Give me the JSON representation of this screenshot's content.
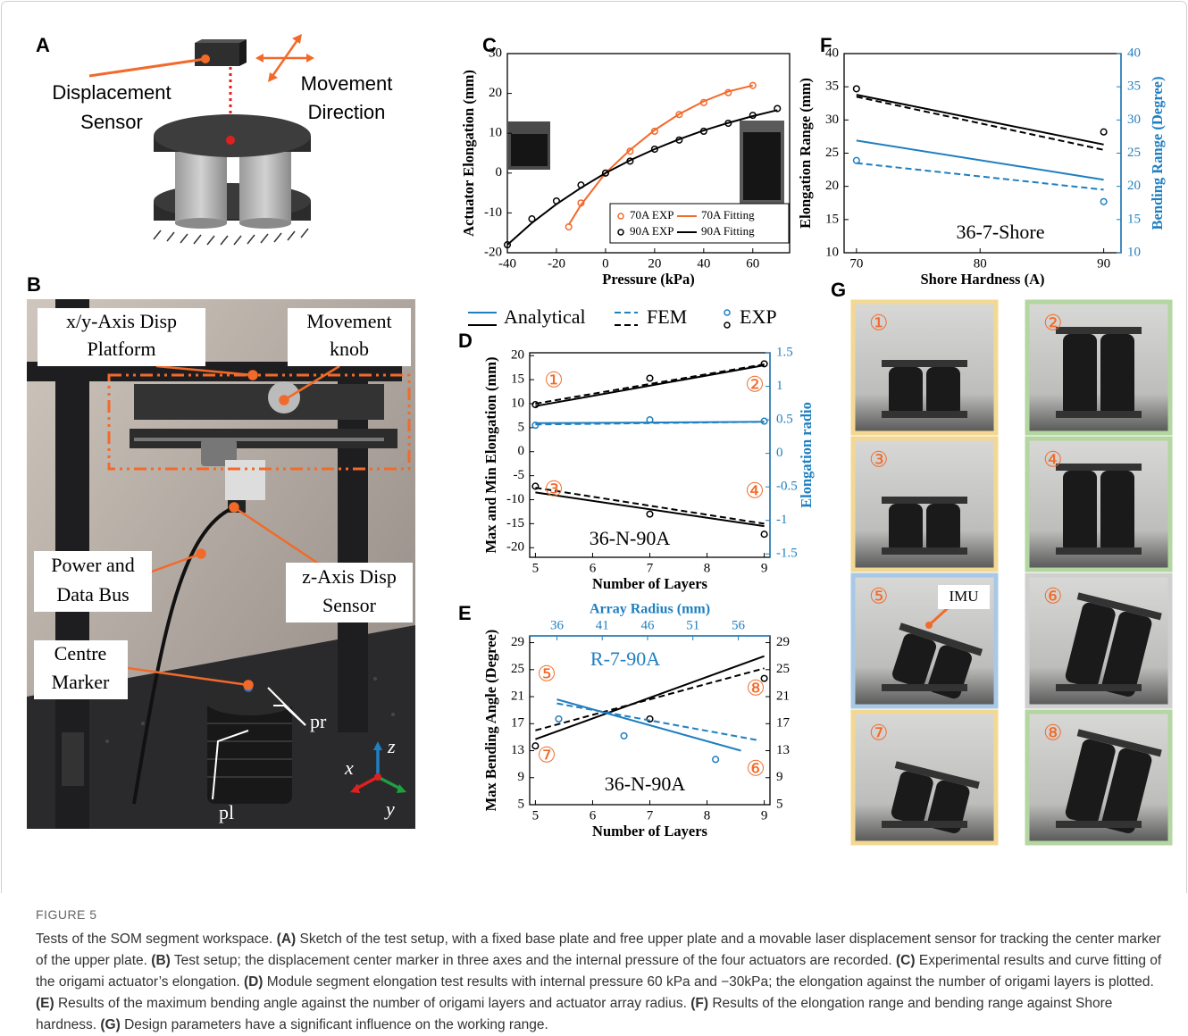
{
  "figure": {
    "panel_labels": [
      "A",
      "B",
      "C",
      "D",
      "E",
      "F",
      "G"
    ],
    "panel_a": {
      "sensor_label": [
        "Displacement",
        "Sensor"
      ],
      "movement_label": [
        "Movement",
        "Direction"
      ]
    },
    "panel_b": {
      "labels": [
        [
          "x/y-Axis Disp",
          "Platform"
        ],
        [
          "Movement",
          "knob"
        ],
        [
          "Power and",
          "Data Bus"
        ],
        [
          "z-Axis Disp",
          "Sensor"
        ],
        [
          "Centre",
          "Marker"
        ]
      ],
      "part_labels": [
        "pl",
        "pr"
      ],
      "axes": [
        "x",
        "y",
        "z"
      ]
    },
    "legend": [
      "Analytical",
      "FEM",
      "EXP"
    ],
    "panel_g": {
      "tiles": [
        "①",
        "②",
        "③",
        "④",
        "⑤",
        "⑥",
        "⑦",
        "⑧"
      ],
      "imu": "IMU"
    },
    "caption": {
      "figure": "FIGURE 5",
      "lead": "Tests of the SOM segment workspace.",
      "items": [
        {
          "label": "(A)",
          "text": "Sketch of the test setup, with a fixed base plate and free upper plate and a movable laser displacement sensor for tracking the center marker of the upper plate."
        },
        {
          "label": "(B)",
          "text": "Test setup; the displacement center marker in three axes and the internal pressure of the four actuators are recorded."
        },
        {
          "label": "(C)",
          "text": "Experimental results and curve fitting of the origami actuator’s elongation."
        },
        {
          "label": "(D)",
          "text": "Module segment elongation test results with internal pressure 60 kPa and −30kPa; the elongation against the number of origami layers is plotted."
        },
        {
          "label": "(E)",
          "text": "Results of the maximum bending angle against the number of origami layers and actuator array radius."
        },
        {
          "label": "(F)",
          "text": "Results of the elongation range and bending range against Shore hardness."
        },
        {
          "label": "(G)",
          "text": "Design parameters have a significant influence on the working range."
        }
      ]
    }
  },
  "chart_data": [
    {
      "type": "line",
      "xlabel": "Pressure (kPa)",
      "ylabel": "Actuator Elongation (mm)",
      "xlim": [
        -40,
        75
      ],
      "xticks": [
        -40,
        -20,
        0,
        20,
        40,
        60
      ],
      "ylim": [
        -20,
        30
      ],
      "yticks": [
        -20,
        -10,
        0,
        10,
        20,
        30
      ],
      "series": [
        {
          "name": "70A EXP",
          "color": "#f26a2a",
          "style": "markers",
          "x": [
            -15,
            -10,
            0,
            10,
            20,
            30,
            40,
            50,
            60
          ],
          "values": [
            -13.5,
            -7.5,
            0,
            5.5,
            10.5,
            14.7,
            17.7,
            20.2,
            22
          ]
        },
        {
          "name": "70A Fitting",
          "color": "#f26a2a",
          "style": "solid",
          "x": [
            -15,
            -10,
            0,
            10,
            20,
            30,
            40,
            50,
            60
          ],
          "values": [
            -13,
            -8,
            0,
            5.8,
            10.8,
            14.8,
            18,
            20.5,
            22
          ]
        },
        {
          "name": "90A EXP",
          "color": "#000000",
          "style": "markers",
          "x": [
            -40,
            -30,
            -20,
            -10,
            0,
            10,
            20,
            30,
            40,
            50,
            60,
            70
          ],
          "values": [
            -18,
            -11.5,
            -7,
            -3,
            0,
            3,
            6,
            8.3,
            10.5,
            12.5,
            14.5,
            16.2
          ]
        },
        {
          "name": "90A Fitting",
          "color": "#000000",
          "style": "solid",
          "x": [
            -40,
            -30,
            -20,
            -10,
            0,
            10,
            20,
            30,
            40,
            50,
            60,
            70
          ],
          "values": [
            -18,
            -12.5,
            -7.8,
            -3.7,
            0,
            3.2,
            6,
            8.5,
            10.7,
            12.6,
            14.3,
            15.8
          ]
        }
      ]
    },
    {
      "type": "line",
      "xlabel": "Number of Layers",
      "ylabel": "Max and Min Elongation (mm)",
      "y2label": "Elongation radio",
      "y2_color": "#1f7fc0",
      "xlim": [
        4.9,
        9.1
      ],
      "xticks": [
        5,
        6,
        7,
        8,
        9
      ],
      "ylim": [
        -22,
        20.6
      ],
      "yticks": [
        -20,
        -15,
        -10,
        -5,
        0,
        5,
        10,
        15,
        20
      ],
      "y2lim": [
        -1.55,
        1.5
      ],
      "y2ticks": [
        -1.5,
        -1,
        -0.5,
        0,
        0.5,
        1,
        1.5
      ],
      "annotations": [
        "①",
        "②",
        "③",
        "④",
        "36-N-90A"
      ],
      "series": [
        {
          "color": "#000000",
          "style": "solid",
          "x": [
            5,
            9
          ],
          "values": [
            9.5,
            18
          ]
        },
        {
          "color": "#000000",
          "style": "dashed",
          "x": [
            5,
            9
          ],
          "values": [
            10,
            18.2
          ]
        },
        {
          "color": "#000000",
          "style": "markers",
          "x": [
            5,
            7,
            9
          ],
          "values": [
            9.8,
            15.3,
            18.3
          ]
        },
        {
          "color": "#000000",
          "style": "solid",
          "x": [
            5,
            9
          ],
          "values": [
            -8.5,
            -15.5
          ]
        },
        {
          "color": "#000000",
          "style": "dashed",
          "x": [
            5,
            9
          ],
          "values": [
            -7.5,
            -15
          ]
        },
        {
          "color": "#000000",
          "style": "markers",
          "x": [
            5,
            7,
            9
          ],
          "values": [
            -7.2,
            -13,
            -17.2
          ]
        },
        {
          "color": "#1f7fc0",
          "style": "solid",
          "axis": "y2",
          "x": [
            5,
            9
          ],
          "values": [
            0.45,
            0.47
          ]
        },
        {
          "color": "#1f7fc0",
          "style": "dashed",
          "axis": "y2",
          "x": [
            5,
            9
          ],
          "values": [
            0.43,
            0.47
          ]
        },
        {
          "color": "#1f7fc0",
          "style": "markers",
          "axis": "y2",
          "x": [
            5,
            7,
            9
          ],
          "values": [
            0.42,
            0.5,
            0.48
          ]
        }
      ]
    },
    {
      "type": "line",
      "xlabel": "Number of Layers",
      "ylabel": "Max Bending Angle (Degree)",
      "x2label": "Array Radius (mm)",
      "x2_color": "#1f7fc0",
      "xlim": [
        4.9,
        9.1
      ],
      "xticks": [
        5,
        6,
        7,
        8,
        9
      ],
      "x2lim": [
        33,
        59.5
      ],
      "x2ticks": [
        36,
        41,
        46,
        51,
        56
      ],
      "ylim": [
        5,
        30
      ],
      "yticks": [
        5,
        9,
        13,
        17,
        21,
        25,
        29
      ],
      "y2lim": [
        5,
        30
      ],
      "y2ticks": [
        5,
        9,
        13,
        17,
        21,
        25,
        29
      ],
      "annotations": [
        "R-7-90A",
        "⑤",
        "⑦",
        "⑧",
        "⑥",
        "36-N-90A"
      ],
      "series": [
        {
          "color": "#000000",
          "style": "solid",
          "x": [
            5,
            9
          ],
          "values": [
            14.7,
            27
          ]
        },
        {
          "color": "#000000",
          "style": "dashed",
          "x": [
            5,
            9
          ],
          "values": [
            16,
            25.2
          ]
        },
        {
          "color": "#000000",
          "style": "markers",
          "x": [
            5,
            7,
            9
          ],
          "values": [
            13.7,
            17.7,
            23.7
          ]
        },
        {
          "color": "#1f7fc0",
          "style": "solid",
          "xaxis": "x2",
          "x": [
            36,
            56.3
          ],
          "values": [
            20.6,
            13
          ]
        },
        {
          "color": "#1f7fc0",
          "style": "dashed",
          "xaxis": "x2",
          "x": [
            36,
            58.4
          ],
          "values": [
            20,
            14.5
          ]
        },
        {
          "color": "#1f7fc0",
          "style": "markers",
          "xaxis": "x2",
          "x": [
            36.2,
            43.4,
            53.5
          ],
          "values": [
            17.7,
            15.2,
            11.7
          ]
        }
      ]
    },
    {
      "type": "line",
      "xlabel": "Shore Hardness (A)",
      "ylabel": "Elongation Range (mm)",
      "y2label": "Bending Range (Degree)",
      "y2_color": "#1f7fc0",
      "xlim": [
        69,
        91.4
      ],
      "xticks": [
        70,
        80,
        90
      ],
      "ylim": [
        10,
        40
      ],
      "yticks": [
        10,
        15,
        20,
        25,
        30,
        35,
        40
      ],
      "y2lim": [
        10,
        40
      ],
      "y2ticks": [
        10,
        15,
        20,
        25,
        30,
        35,
        40
      ],
      "annotations": [
        "36-7-Shore"
      ],
      "series": [
        {
          "color": "#000000",
          "style": "solid",
          "x": [
            70,
            90
          ],
          "values": [
            33.8,
            26.3
          ]
        },
        {
          "color": "#000000",
          "style": "dashed",
          "x": [
            70,
            90
          ],
          "values": [
            33.5,
            25.5
          ]
        },
        {
          "color": "#000000",
          "style": "markers",
          "x": [
            70,
            90
          ],
          "values": [
            34.7,
            28.2
          ]
        },
        {
          "color": "#1f7fc0",
          "style": "solid",
          "axis": "y2",
          "x": [
            70,
            90
          ],
          "values": [
            26.9,
            21
          ]
        },
        {
          "color": "#1f7fc0",
          "style": "dashed",
          "axis": "y2",
          "x": [
            70,
            90
          ],
          "values": [
            23.5,
            19.5
          ]
        },
        {
          "color": "#1f7fc0",
          "style": "markers",
          "axis": "y2",
          "x": [
            70,
            90
          ],
          "values": [
            23.9,
            17.7
          ]
        }
      ]
    }
  ]
}
